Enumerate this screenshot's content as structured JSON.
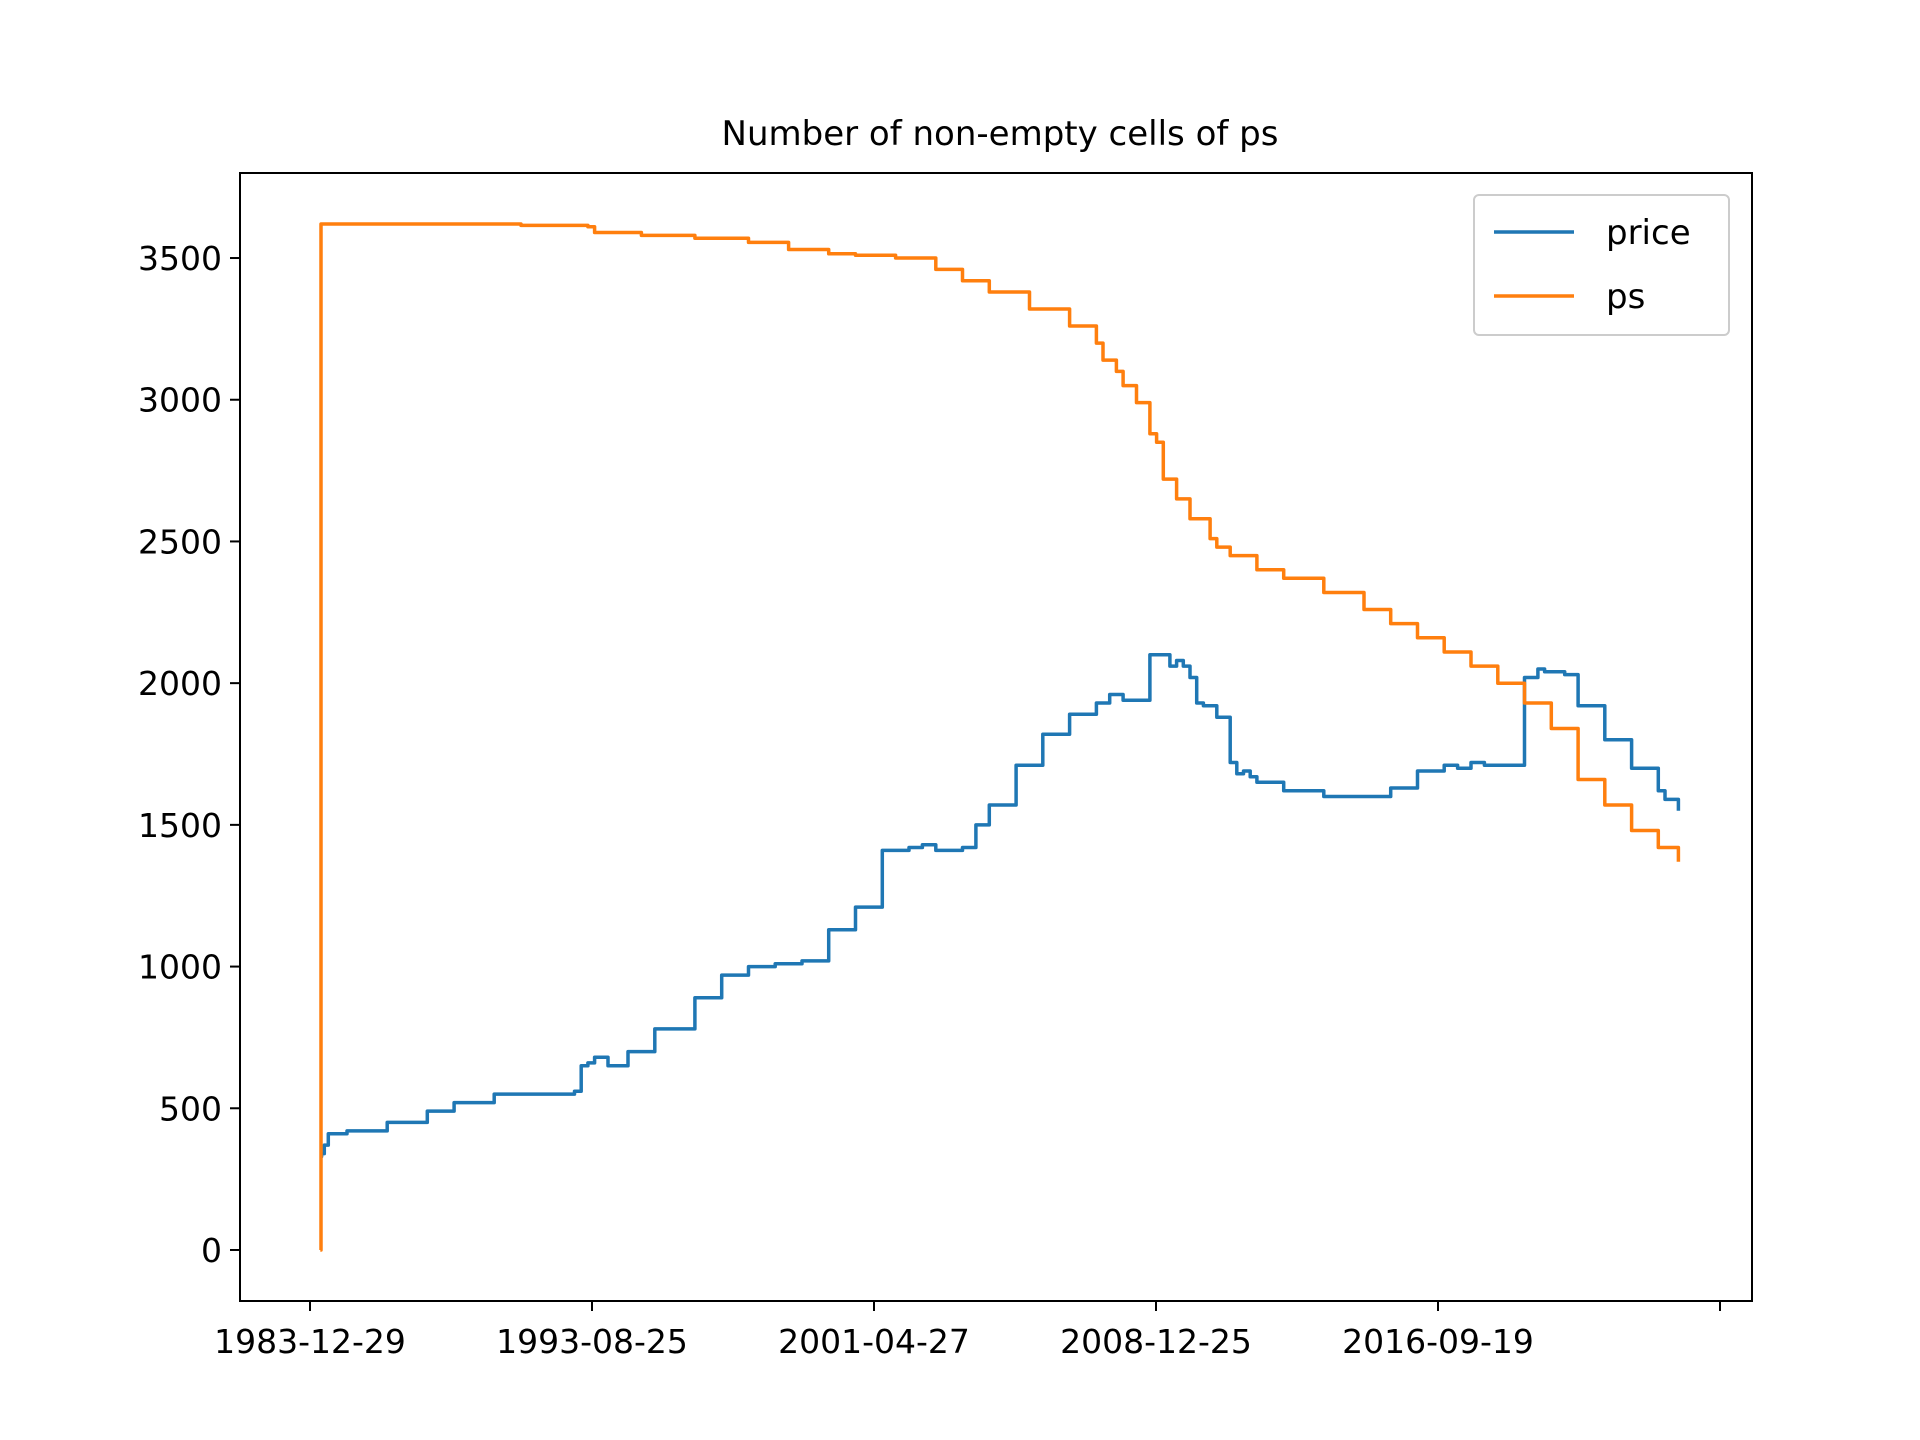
{
  "chart_data": {
    "type": "line",
    "title": "Number of non-empty cells of ps",
    "xlabel": "",
    "ylabel": "",
    "x_tick_labels": [
      "1983-12-29",
      "1993-08-25",
      "2001-04-27",
      "2008-12-25",
      "2016-09-19",
      ""
    ],
    "y_ticks": [
      0,
      500,
      1000,
      1500,
      2000,
      2500,
      3000,
      3500
    ],
    "y_tick_labels": [
      "0",
      "500",
      "1000",
      "1500",
      "2000",
      "2500",
      "3000",
      "3500"
    ],
    "xlim_index": [
      -600,
      10700
    ],
    "ylim": [
      -180,
      3800
    ],
    "grid": false,
    "legend_position": "top-right",
    "series": [
      {
        "name": "price",
        "color": "#1f77b4",
        "x": [
          0,
          10,
          30,
          60,
          200,
          500,
          800,
          1000,
          1300,
          1600,
          1900,
          1950,
          2000,
          2050,
          2150,
          2300,
          2500,
          2800,
          3000,
          3200,
          3400,
          3600,
          3800,
          4000,
          4200,
          4400,
          4500,
          4600,
          4800,
          4900,
          5000,
          5200,
          5400,
          5600,
          5800,
          5900,
          6000,
          6200,
          6350,
          6400,
          6450,
          6500,
          6550,
          6600,
          6700,
          6800,
          6850,
          6900,
          6950,
          7000,
          7200,
          7500,
          7800,
          8000,
          8200,
          8400,
          8500,
          8600,
          8700,
          8800,
          8900,
          9000,
          9100,
          9150,
          9200,
          9300,
          9400,
          9600,
          9800,
          10000,
          10050,
          10150
        ],
        "y": [
          330,
          340,
          370,
          410,
          420,
          450,
          490,
          520,
          550,
          550,
          560,
          650,
          660,
          680,
          650,
          700,
          780,
          890,
          970,
          1000,
          1010,
          1020,
          1130,
          1210,
          1410,
          1420,
          1430,
          1410,
          1420,
          1500,
          1570,
          1710,
          1820,
          1890,
          1930,
          1960,
          1940,
          2100,
          2060,
          2080,
          2060,
          2020,
          1930,
          1920,
          1880,
          1720,
          1680,
          1690,
          1670,
          1650,
          1620,
          1600,
          1600,
          1630,
          1690,
          1710,
          1700,
          1720,
          1710,
          1710,
          1710,
          2020,
          2050,
          2040,
          2040,
          2030,
          1920,
          1800,
          1700,
          1620,
          1590,
          1550
        ]
      },
      {
        "name": "ps",
        "color": "#ff7f0e",
        "x": [
          0,
          5,
          10,
          15,
          30,
          500,
          1000,
          1500,
          2000,
          2050,
          2400,
          2800,
          3200,
          3500,
          3800,
          4000,
          4300,
          4600,
          4800,
          5000,
          5300,
          5600,
          5800,
          5850,
          5950,
          6000,
          6100,
          6200,
          6250,
          6300,
          6400,
          6500,
          6650,
          6700,
          6800,
          7000,
          7200,
          7500,
          7800,
          8000,
          8200,
          8400,
          8600,
          8800,
          9000,
          9200,
          9400,
          9600,
          9800,
          10000,
          10150
        ],
        "y": [
          0,
          3620,
          3620,
          3620,
          3620,
          3620,
          3620,
          3615,
          3610,
          3590,
          3580,
          3570,
          3555,
          3530,
          3515,
          3510,
          3500,
          3460,
          3420,
          3380,
          3320,
          3260,
          3200,
          3140,
          3100,
          3050,
          2990,
          2880,
          2850,
          2720,
          2650,
          2580,
          2510,
          2480,
          2450,
          2400,
          2370,
          2320,
          2260,
          2210,
          2160,
          2110,
          2060,
          2000,
          1930,
          1840,
          1660,
          1570,
          1480,
          1420,
          1370
        ]
      }
    ]
  }
}
